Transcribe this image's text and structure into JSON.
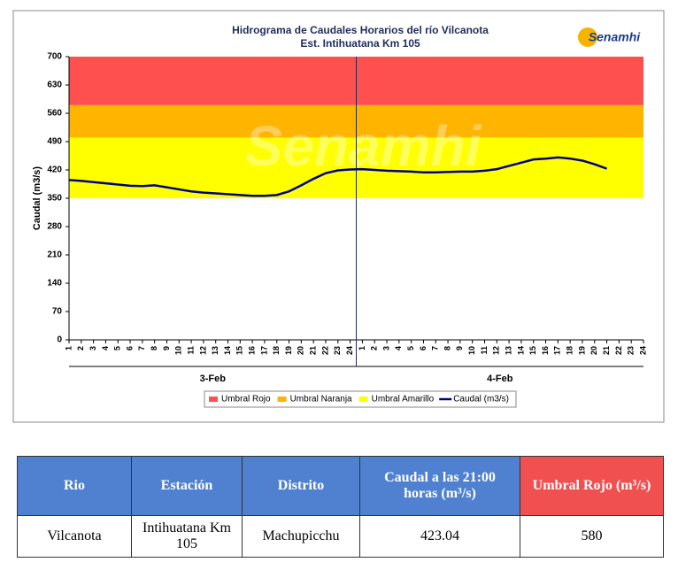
{
  "chart_data": {
    "type": "line",
    "title": "Hidrograma de Caudales Horarios del río Vilcanota",
    "subtitle": "Est. Intihuatana Km 105",
    "logo": "Senamhi",
    "y_label": "Caudal  (m3/s)",
    "ylim": [
      0,
      700
    ],
    "yticks": [
      0,
      70,
      140,
      210,
      280,
      350,
      420,
      490,
      560,
      630,
      700
    ],
    "categories": [
      "1",
      "2",
      "3",
      "4",
      "5",
      "6",
      "7",
      "8",
      "9",
      "10",
      "11",
      "12",
      "13",
      "14",
      "15",
      "16",
      "17",
      "18",
      "19",
      "20",
      "21",
      "22",
      "23",
      "24",
      "1",
      "2",
      "3",
      "4",
      "5",
      "6",
      "7",
      "8",
      "9",
      "10",
      "11",
      "12",
      "13",
      "14",
      "15",
      "16",
      "17",
      "18",
      "19",
      "20",
      "21",
      "22",
      "23",
      "24"
    ],
    "groups": [
      {
        "label": "3-Feb",
        "size": 24
      },
      {
        "label": "4-Feb",
        "size": 24
      }
    ],
    "thresholds": [
      {
        "name": "Umbral Rojo",
        "color": "#ff5050",
        "from": 580,
        "to": 700
      },
      {
        "name": "Umbral Naranja",
        "color": "#ffb400",
        "from": 500,
        "to": 580
      },
      {
        "name": "Umbral Amarillo",
        "color": "#ffff00",
        "from": 350,
        "to": 500
      }
    ],
    "series": [
      {
        "name": "Caudal (m3/s)",
        "color": "#00008b",
        "values": [
          395,
          393,
          390,
          387,
          384,
          381,
          380,
          382,
          377,
          372,
          367,
          364,
          362,
          360,
          358,
          356,
          356,
          358,
          367,
          382,
          398,
          412,
          419,
          421,
          422,
          420,
          418,
          417,
          416,
          414,
          414,
          415,
          416,
          416,
          418,
          422,
          430,
          438,
          446,
          448,
          451,
          448,
          443,
          434,
          423,
          null,
          null,
          null
        ]
      }
    ]
  },
  "table": {
    "header": [
      "Rio",
      "Estación",
      "Distrito",
      "Caudal a las 21:00 horas (m³/s)",
      "Umbral Rojo (m³/s)"
    ],
    "rows": [
      [
        "Vilcanota",
        "Intihuatana Km 105",
        "Machupicchu",
        423.04,
        580
      ]
    ]
  }
}
